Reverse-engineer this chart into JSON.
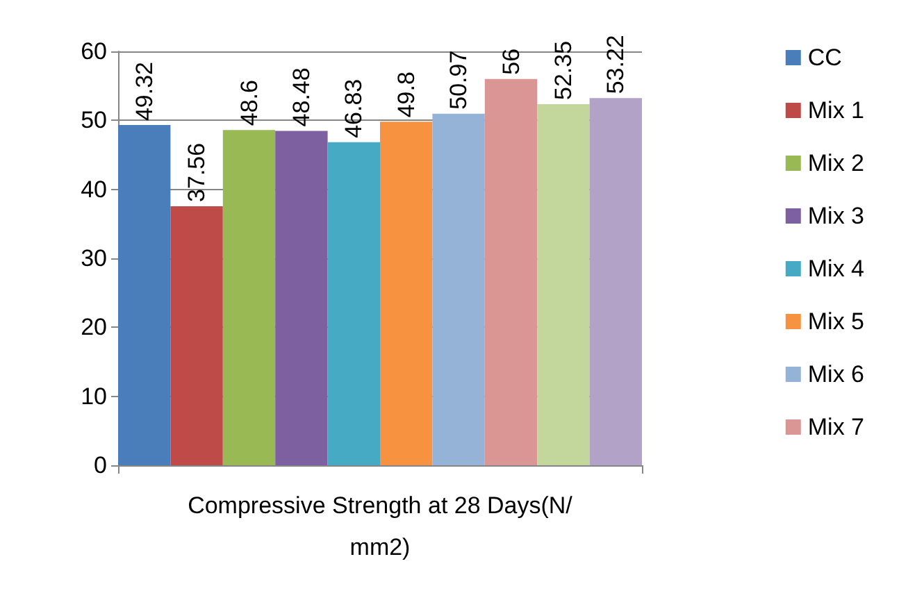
{
  "chart_data": {
    "type": "bar",
    "categories": [
      "Compressive Strength at 28 Days(N/mm2)"
    ],
    "series": [
      {
        "name": "CC",
        "color": "#4a7ebb",
        "values": [
          49.32
        ]
      },
      {
        "name": "Mix 1",
        "color": "#be4b48",
        "values": [
          37.56
        ]
      },
      {
        "name": "Mix 2",
        "color": "#98b954",
        "values": [
          48.6
        ]
      },
      {
        "name": "Mix 3",
        "color": "#7d60a0",
        "values": [
          48.48
        ]
      },
      {
        "name": "Mix 4",
        "color": "#46aac5",
        "values": [
          46.83
        ]
      },
      {
        "name": "Mix 5",
        "color": "#f69240",
        "values": [
          49.8
        ]
      },
      {
        "name": "Mix 6",
        "color": "#95b3d7",
        "values": [
          50.97
        ]
      },
      {
        "name": "Mix 7",
        "color": "#d99694",
        "values": [
          56
        ]
      },
      {
        "color": "#c3d69b",
        "values": [
          52.35
        ]
      },
      {
        "color": "#b3a2c7",
        "values": [
          53.22
        ]
      }
    ],
    "ylim": [
      0,
      60
    ],
    "yticks": [
      0,
      10,
      20,
      30,
      40,
      50,
      60
    ],
    "grid": "y",
    "legend": "right",
    "data_labels": true
  }
}
